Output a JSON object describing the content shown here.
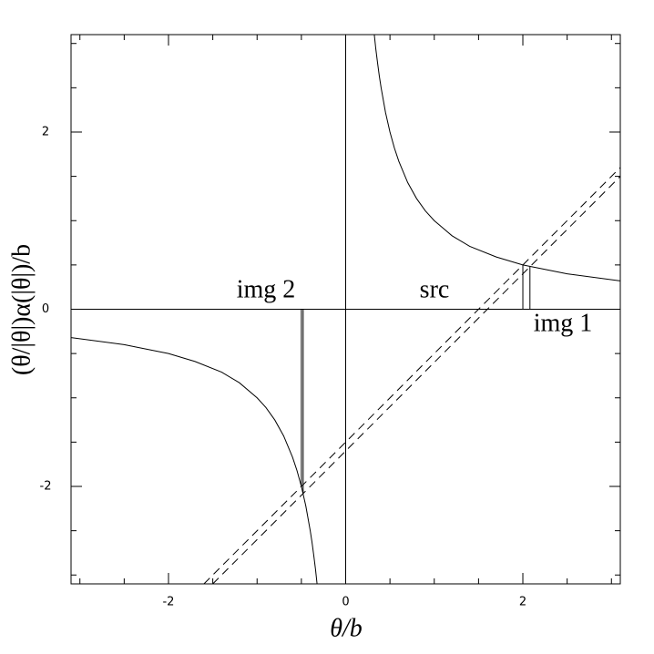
{
  "chart_data": {
    "type": "line",
    "xlabel": "θ/b",
    "ylabel": "(θ/|θ|)α(|θ|)/b",
    "xlim": [
      -3.1,
      3.1
    ],
    "ylim": [
      -3.1,
      3.1
    ],
    "xticks": [
      -2,
      0,
      2
    ],
    "yticks": [
      -2,
      0,
      2
    ],
    "xminorticks": [
      -3,
      -2.5,
      -1.5,
      -1,
      -0.5,
      0.5,
      1,
      1.5,
      2.5,
      3
    ],
    "yminorticks": [
      -3,
      -2.5,
      -1.5,
      -1,
      -0.5,
      0.5,
      1,
      1.5,
      2.5,
      3
    ],
    "zero_lines": true,
    "series": [
      {
        "color": "#000000",
        "dash": false,
        "x": [
          0.323,
          0.34,
          0.36,
          0.38,
          0.4,
          0.45,
          0.5,
          0.55,
          0.6,
          0.7,
          0.8,
          0.9,
          1,
          1.2,
          1.4,
          1.7,
          2,
          2.5,
          3.1
        ],
        "values": [
          3.1,
          2.94,
          2.78,
          2.63,
          2.5,
          2.22,
          2,
          1.82,
          1.67,
          1.43,
          1.25,
          1.11,
          1,
          0.83,
          0.71,
          0.59,
          0.5,
          0.4,
          0.32
        ]
      },
      {
        "color": "#000000",
        "dash": false,
        "x": [
          -3.1,
          -2.5,
          -2,
          -1.7,
          -1.4,
          -1.2,
          -1,
          -0.9,
          -0.8,
          -0.7,
          -0.6,
          -0.55,
          -0.5,
          -0.45,
          -0.4,
          -0.38,
          -0.36,
          -0.34,
          -0.323
        ],
        "values": [
          -0.32,
          -0.4,
          -0.5,
          -0.59,
          -0.71,
          -0.83,
          -1,
          -1.11,
          -1.25,
          -1.43,
          -1.67,
          -1.82,
          -2,
          -2.22,
          -2.5,
          -2.63,
          -2.78,
          -2.94,
          -3.1
        ]
      },
      {
        "color": "#000000",
        "dash": true,
        "x": [
          -1.6,
          3.1
        ],
        "values": [
          -3.1,
          1.6
        ]
      },
      {
        "color": "#000000",
        "dash": true,
        "x": [
          -1.5,
          3.1
        ],
        "values": [
          -3.1,
          1.5
        ]
      },
      {
        "color": "#000000",
        "dash": false,
        "x": [
          2,
          2
        ],
        "values": [
          0,
          0.5
        ]
      },
      {
        "color": "#000000",
        "dash": false,
        "x": [
          2.08,
          2.08
        ],
        "values": [
          0,
          0.48
        ]
      },
      {
        "color": "#000000",
        "dash": false,
        "x": [
          -0.5,
          -0.5
        ],
        "values": [
          0,
          -2
        ]
      },
      {
        "color": "#000000",
        "dash": false,
        "x": [
          -0.48,
          -0.48
        ],
        "values": [
          0,
          -2.08
        ]
      }
    ],
    "annotations": [
      "img 2",
      "src",
      "img 1"
    ]
  }
}
